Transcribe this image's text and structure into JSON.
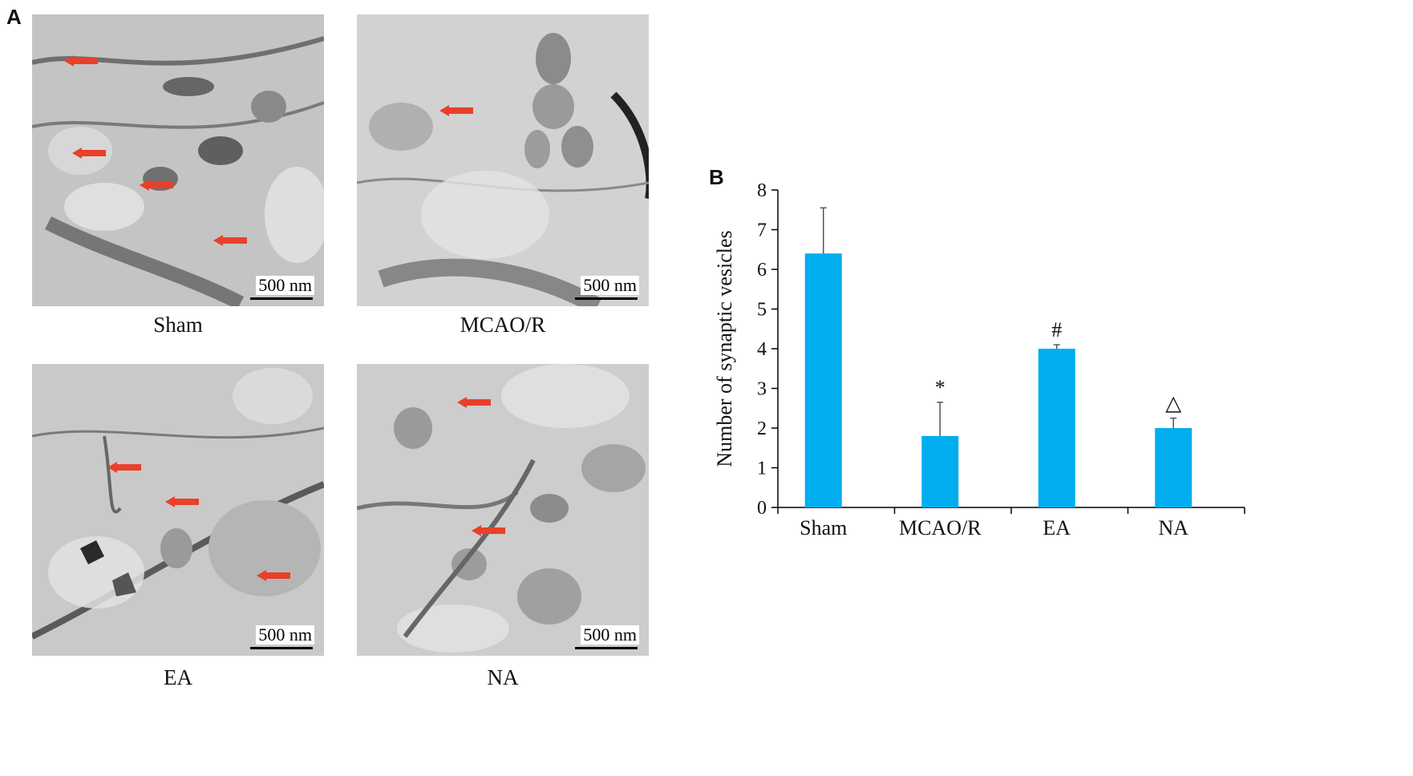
{
  "panel_a": {
    "label": "A",
    "images": [
      {
        "caption": "Sham",
        "scale_bar": "500 nm",
        "arrows": 4
      },
      {
        "caption": "MCAO/R",
        "scale_bar": "500 nm",
        "arrows": 1
      },
      {
        "caption": "EA",
        "scale_bar": "500 nm",
        "arrows": 3
      },
      {
        "caption": "NA",
        "scale_bar": "500 nm",
        "arrows": 2
      }
    ],
    "arrow_color": "#e8402a"
  },
  "panel_b": {
    "label": "B"
  },
  "chart_data": {
    "type": "bar",
    "categories": [
      "Sham",
      "MCAO/R",
      "EA",
      "NA"
    ],
    "values": [
      6.4,
      1.8,
      4.0,
      2.0
    ],
    "errors": [
      1.15,
      0.85,
      0.1,
      0.25
    ],
    "annotations": [
      "",
      "*",
      "#",
      "△"
    ],
    "ylabel": "Number of synaptic vesicles",
    "xlabel": "",
    "ylim": [
      0,
      8
    ],
    "yticks": [
      0,
      1,
      2,
      3,
      4,
      5,
      6,
      7,
      8
    ],
    "bar_color": "#00aeef",
    "error_color": "#555555",
    "grid": false
  }
}
